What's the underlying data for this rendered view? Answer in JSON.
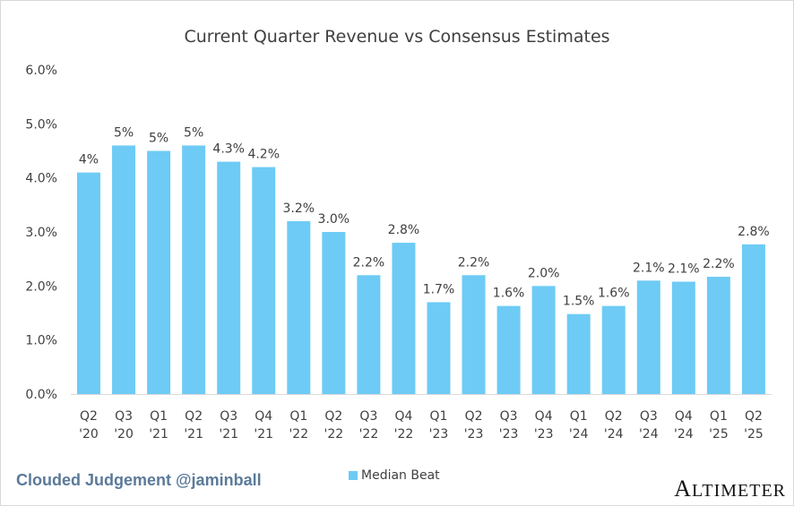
{
  "chart_data": {
    "type": "bar",
    "title": "Current Quarter Revenue vs Consensus Estimates",
    "categories": [
      [
        "Q2",
        "'20"
      ],
      [
        "Q3",
        "'20"
      ],
      [
        "Q1",
        "'21"
      ],
      [
        "Q2",
        "'21"
      ],
      [
        "Q3",
        "'21"
      ],
      [
        "Q4",
        "'21"
      ],
      [
        "Q1",
        "'22"
      ],
      [
        "Q2",
        "'22"
      ],
      [
        "Q3",
        "'22"
      ],
      [
        "Q4",
        "'22"
      ],
      [
        "Q1",
        "'23"
      ],
      [
        "Q2",
        "'23"
      ],
      [
        "Q3",
        "'23"
      ],
      [
        "Q4",
        "'23"
      ],
      [
        "Q1",
        "'24"
      ],
      [
        "Q2",
        "'24"
      ],
      [
        "Q3",
        "'24"
      ],
      [
        "Q4",
        "'24"
      ],
      [
        "Q1",
        "'25"
      ],
      [
        "Q2",
        "'25"
      ]
    ],
    "series": [
      {
        "name": "Median Beat",
        "values": [
          4.1,
          4.6,
          4.5,
          4.6,
          4.3,
          4.2,
          3.2,
          3.0,
          2.2,
          2.8,
          1.7,
          2.2,
          1.63,
          2.0,
          1.48,
          1.63,
          2.1,
          2.08,
          2.17,
          2.77
        ],
        "labels": [
          "4%",
          "5%",
          "5%",
          "5%",
          "4.3%",
          "4.2%",
          "3.2%",
          "3.0%",
          "2.2%",
          "2.8%",
          "1.7%",
          "2.2%",
          "1.6%",
          "2.0%",
          "1.5%",
          "1.6%",
          "2.1%",
          "2.1%",
          "2.2%",
          "2.8%"
        ]
      }
    ],
    "yticks": [
      "0.0%",
      "1.0%",
      "2.0%",
      "3.0%",
      "4.0%",
      "5.0%",
      "6.0%"
    ],
    "ylim": [
      0,
      6
    ],
    "ylabel": "",
    "xlabel": "",
    "grid": false,
    "legend": "bottom-center",
    "color": "#6ecbf5"
  },
  "footer": {
    "brand": "Clouded Judgement @jaminball",
    "logo": "ALTIMETER"
  }
}
